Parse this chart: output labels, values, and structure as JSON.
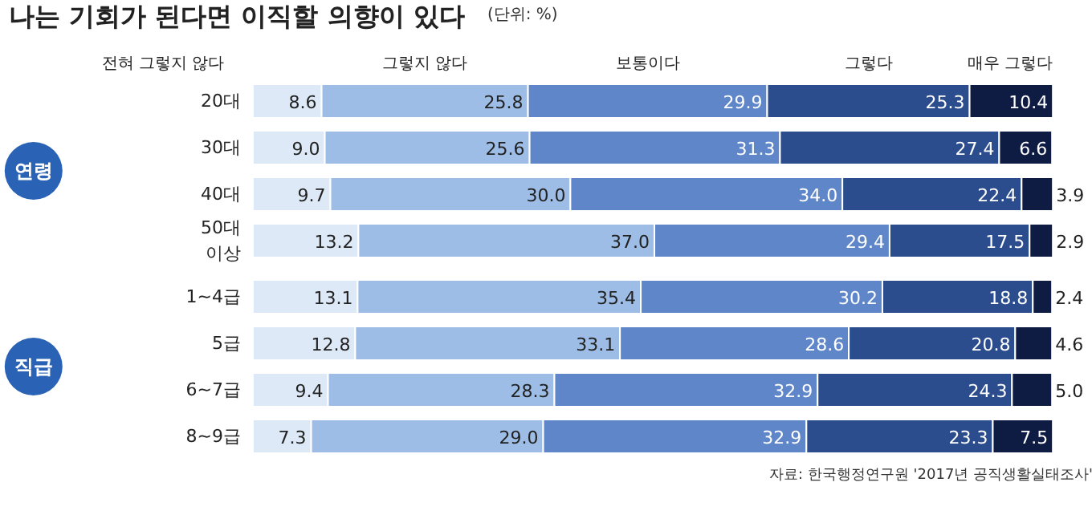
{
  "chart_data": [
    {
      "type": "bar",
      "orientation": "horizontal",
      "stacked": true,
      "title": "나는 기회가 된다면 이직할 의향이 있다",
      "subtitle": "(단위: %)",
      "categories": [
        "20대",
        "30대",
        "40대",
        "50대\n이상"
      ],
      "annotations": [
        "연령"
      ],
      "series": [
        {
          "name": "전혀 그렇지 않다",
          "color": "#dde9f6",
          "values": [
            8.6,
            9.0,
            9.7,
            13.2
          ],
          "value_labels": [
            "8.6",
            "9.0",
            "9.7",
            "13.2"
          ]
        },
        {
          "name": "그렇지 않다",
          "color": "#9dbde6",
          "values": [
            25.8,
            25.6,
            30.0,
            37.0
          ],
          "value_labels": [
            "25.8",
            "25.6",
            "30.0",
            "37.0"
          ]
        },
        {
          "name": "보통이다",
          "color": "#5f86c8",
          "values": [
            29.9,
            31.3,
            34.0,
            29.4
          ],
          "value_labels": [
            "29.9",
            "31.3",
            "34.0",
            "29.4"
          ]
        },
        {
          "name": "그렇다",
          "color": "#2b4d8e",
          "values": [
            25.3,
            27.4,
            22.4,
            17.5
          ],
          "value_labels": [
            "25.3",
            "27.4",
            "22.4",
            "17.5"
          ]
        },
        {
          "name": "매우 그렇다",
          "color": "#0e1b42",
          "values": [
            10.4,
            6.6,
            3.9,
            2.9
          ],
          "value_labels": [
            "10.4",
            "6.6",
            "3.9",
            "2.9"
          ]
        }
      ]
    },
    {
      "type": "bar",
      "orientation": "horizontal",
      "stacked": true,
      "categories": [
        "1~4급",
        "5급",
        "6~7급",
        "8~9급"
      ],
      "annotations": [
        "직급",
        "자료: 한국행정연구원 '2017년 공직생활실태조사'"
      ],
      "series": [
        {
          "color": "#dde9f6",
          "values": [
            13.1,
            12.8,
            9.4,
            7.3
          ],
          "value_labels": [
            "13.1",
            "12.8",
            "9.4",
            "7.3"
          ]
        },
        {
          "color": "#9dbde6",
          "values": [
            35.4,
            33.1,
            28.3,
            29.0
          ],
          "value_labels": [
            "35.4",
            "33.1",
            "28.3",
            "29.0"
          ]
        },
        {
          "color": "#5f86c8",
          "values": [
            30.2,
            28.6,
            32.9,
            32.9
          ],
          "value_labels": [
            "30.2",
            "28.6",
            "32.9",
            "32.9"
          ]
        },
        {
          "color": "#2b4d8e",
          "values": [
            18.8,
            20.8,
            24.3,
            23.3
          ],
          "value_labels": [
            "18.8",
            "20.8",
            "24.3",
            "23.3"
          ]
        },
        {
          "color": "#0e1b42",
          "values": [
            2.4,
            4.6,
            5.0,
            7.5
          ],
          "value_labels": [
            "2.4",
            "4.6",
            "5.0",
            "7.5"
          ]
        }
      ]
    }
  ]
}
